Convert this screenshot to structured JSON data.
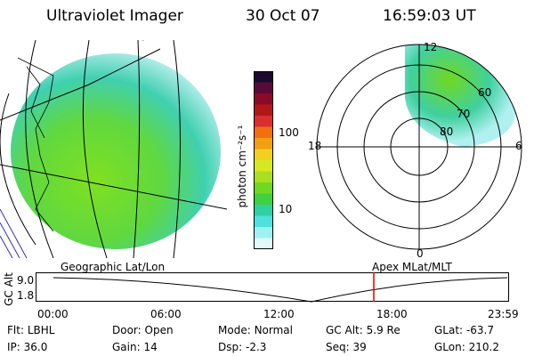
{
  "header": {
    "title": "Ultraviolet Imager",
    "date": "30 Oct 07",
    "time": "16:59:03 UT"
  },
  "colorbar": {
    "unit_label": "photon cm⁻²s⁻¹",
    "ticks": [
      "100",
      "10"
    ],
    "colors": [
      "#1a0a2e",
      "#5a0a3a",
      "#8a0a2a",
      "#b01818",
      "#d83030",
      "#f07010",
      "#f0a010",
      "#f0d020",
      "#d8e820",
      "#a8e020",
      "#70d820",
      "#40d040",
      "#30d0a0",
      "#50e0e0",
      "#a0f0f0",
      "#e0f8f8"
    ]
  },
  "left_map": {
    "label": "Geographic Lat/Lon"
  },
  "polar_plot": {
    "label": "Apex MLat/MLT",
    "mlt_labels": {
      "top": "12",
      "left": "18",
      "right": "6",
      "bottom": "0"
    },
    "lat_labels": [
      "60",
      "70",
      "80"
    ]
  },
  "altitude_plot": {
    "ylabel": "GC Alt",
    "yticks": [
      "9.0",
      "1.8"
    ],
    "xticks": [
      "00:00",
      "06:00",
      "12:00",
      "18:00",
      "23:59"
    ],
    "marker_color": "#e00000"
  },
  "footer": {
    "row1": [
      {
        "label": "Flt:",
        "value": "LBHL"
      },
      {
        "label": "Door:",
        "value": "Open"
      },
      {
        "label": "Mode:",
        "value": "Normal"
      },
      {
        "label": "GC Alt:",
        "value": "5.9 Re"
      },
      {
        "label": "GLat:",
        "value": "-63.7"
      }
    ],
    "row2": [
      {
        "label": "IP:",
        "value": "36.0"
      },
      {
        "label": "Gain:",
        "value": "14"
      },
      {
        "label": "Dsp:",
        "value": "-2.3"
      },
      {
        "label": "Seq:",
        "value": "39"
      },
      {
        "label": "GLon:",
        "value": "210.2"
      }
    ]
  }
}
